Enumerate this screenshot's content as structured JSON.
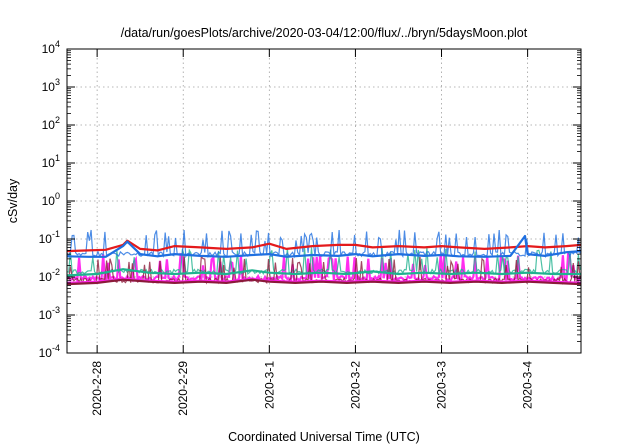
{
  "chart_data": {
    "type": "line",
    "title": "/data/run/goesPlots/archive/2020-03-04/12:00/flux/../bryn/5daysMoon.plot",
    "xlabel": "Coordinated Universal Time (UTC)",
    "ylabel": "cSv/day",
    "y_scale": "log",
    "ylim": [
      0.0001,
      10000
    ],
    "xlim": [
      -0.35,
      5.62
    ],
    "grid": true,
    "legend": "none",
    "x_ticks": [
      {
        "value": 0,
        "label": "2020-2-28"
      },
      {
        "value": 1,
        "label": "2020-2-29"
      },
      {
        "value": 2,
        "label": "2020-3-1"
      },
      {
        "value": 3,
        "label": "2020-3-2"
      },
      {
        "value": 4,
        "label": "2020-3-3"
      },
      {
        "value": 5,
        "label": "2020-3-4"
      }
    ],
    "y_ticks": [
      {
        "value": 0.0001,
        "base": "10",
        "exp": "-4"
      },
      {
        "value": 0.001,
        "base": "10",
        "exp": "-3"
      },
      {
        "value": 0.01,
        "base": "10",
        "exp": "-2"
      },
      {
        "value": 0.1,
        "base": "10",
        "exp": "-1"
      },
      {
        "value": 1,
        "base": "10",
        "exp": "0"
      },
      {
        "value": 10,
        "base": "10",
        "exp": "1"
      },
      {
        "value": 100,
        "base": "10",
        "exp": "2"
      },
      {
        "value": 1000,
        "base": "10",
        "exp": "3"
      },
      {
        "value": 10000,
        "base": "10",
        "exp": "4"
      }
    ],
    "series": [
      {
        "color": "#e41a1c",
        "x": [
          -0.35,
          -0.1,
          0.1,
          0.3,
          0.35,
          0.5,
          0.7,
          0.9,
          1.2,
          1.5,
          1.8,
          2.0,
          2.2,
          2.5,
          2.8,
          3.0,
          3.2,
          3.5,
          3.8,
          4.0,
          4.2,
          4.5,
          4.8,
          5.0,
          5.2,
          5.45,
          5.62
        ],
        "y": [
          0.048,
          0.05,
          0.052,
          0.07,
          0.09,
          0.055,
          0.05,
          0.065,
          0.06,
          0.055,
          0.06,
          0.075,
          0.055,
          0.065,
          0.07,
          0.07,
          0.06,
          0.065,
          0.06,
          0.065,
          0.06,
          0.055,
          0.06,
          0.065,
          0.06,
          0.065,
          0.07
        ]
      },
      {
        "color": "#1f6fe0",
        "x": [
          -0.35,
          -0.1,
          0.1,
          0.3,
          0.35,
          0.5,
          0.7,
          0.9,
          1.2,
          1.5,
          1.8,
          2.0,
          2.2,
          2.5,
          2.8,
          3.0,
          3.2,
          3.5,
          3.8,
          4.0,
          4.2,
          4.5,
          4.8,
          4.97,
          5.0,
          5.2,
          5.45,
          5.62
        ],
        "y": [
          0.035,
          0.034,
          0.034,
          0.065,
          0.085,
          0.04,
          0.035,
          0.04,
          0.036,
          0.034,
          0.038,
          0.04,
          0.034,
          0.038,
          0.036,
          0.04,
          0.035,
          0.04,
          0.036,
          0.038,
          0.035,
          0.034,
          0.036,
          0.12,
          0.04,
          0.036,
          0.045,
          0.048
        ]
      },
      {
        "color": "#1fb28f",
        "x": [
          -0.35,
          0.0,
          0.3,
          0.6,
          0.9,
          1.2,
          1.5,
          1.8,
          2.0,
          2.3,
          2.6,
          2.9,
          3.2,
          3.5,
          3.8,
          4.1,
          4.4,
          4.7,
          5.0,
          5.3,
          5.62
        ],
        "y": [
          0.011,
          0.012,
          0.016,
          0.013,
          0.012,
          0.013,
          0.012,
          0.015,
          0.013,
          0.012,
          0.013,
          0.012,
          0.014,
          0.012,
          0.013,
          0.012,
          0.013,
          0.012,
          0.013,
          0.012,
          0.012
        ]
      },
      {
        "color": "#ff22ee",
        "x": [
          -0.35,
          0.0,
          0.3,
          0.6,
          0.9,
          1.2,
          1.5,
          1.8,
          2.0,
          2.3,
          2.6,
          2.9,
          3.2,
          3.5,
          3.8,
          4.1,
          4.4,
          4.7,
          5.0,
          5.3,
          5.62
        ],
        "y": [
          0.007,
          0.0075,
          0.009,
          0.008,
          0.0075,
          0.008,
          0.0075,
          0.009,
          0.008,
          0.0075,
          0.008,
          0.0075,
          0.008,
          0.0075,
          0.008,
          0.0075,
          0.008,
          0.0075,
          0.008,
          0.0075,
          0.007
        ]
      },
      {
        "color": "#8b1a3a",
        "x": [
          -0.35,
          0.0,
          0.3,
          0.6,
          0.9,
          1.2,
          1.5,
          1.8,
          2.0,
          2.3,
          2.6,
          2.9,
          3.2,
          3.5,
          3.8,
          4.1,
          4.4,
          4.7,
          5.0,
          5.3,
          5.62
        ],
        "y": [
          0.0065,
          0.007,
          0.0085,
          0.0075,
          0.007,
          0.0075,
          0.007,
          0.0085,
          0.0075,
          0.007,
          0.0075,
          0.007,
          0.0075,
          0.007,
          0.0075,
          0.007,
          0.0075,
          0.007,
          0.0075,
          0.007,
          0.0065
        ]
      }
    ]
  }
}
